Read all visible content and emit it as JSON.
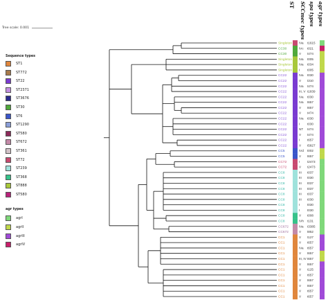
{
  "scale_label": "Tree scale: 0.001",
  "legends": {
    "sequence_types": {
      "title": "Sequence types",
      "items": [
        {
          "label": "ST1",
          "color": "#e0863c"
        },
        {
          "label": "ST772",
          "color": "#a87a4a"
        },
        {
          "label": "ST22",
          "color": "#7a3bd1"
        },
        {
          "label": "ST2371",
          "color": "#c28ee0"
        },
        {
          "label": "ST3676",
          "color": "#2a2a8c"
        },
        {
          "label": "ST30",
          "color": "#4fa83a"
        },
        {
          "label": "ST6",
          "color": "#3a55c9"
        },
        {
          "label": "ST1290",
          "color": "#8a9ed8"
        },
        {
          "label": "ST580",
          "color": "#8c2a5a"
        },
        {
          "label": "ST672",
          "color": "#c48aa8"
        },
        {
          "label": "ST361",
          "color": "#d2c3c8"
        },
        {
          "label": "ST72",
          "color": "#c84a70"
        },
        {
          "label": "ST239",
          "color": "#9fe2dc"
        },
        {
          "label": "ST368",
          "color": "#36c28a"
        },
        {
          "label": "ST888",
          "color": "#a8c83a"
        },
        {
          "label": "ST580",
          "color": "#b8227a"
        }
      ]
    },
    "agr_types": {
      "title": "agr types",
      "items": [
        {
          "label": "agrI",
          "color": "#7fd87a"
        },
        {
          "label": "agrII",
          "color": "#c0d84a"
        },
        {
          "label": "agrIII",
          "color": "#a04ad8"
        },
        {
          "label": "agrIV",
          "color": "#c81e6a"
        }
      ]
    }
  },
  "column_headers": {
    "st": "ST",
    "scc": "SCCmec types",
    "spa": "spa types",
    "agr": "agr types"
  },
  "leaves": [
    {
      "cc": "Singleton",
      "scc": "IVa",
      "spa": "t1615",
      "st_color": "#c84a70",
      "agr_color": "#7fd87a"
    },
    {
      "cc": "CC30",
      "scc": "IVc",
      "spa": "t021",
      "st_color": "#4fa83a",
      "agr_color": "#c81e6a"
    },
    {
      "cc": "CC30",
      "scc": "V",
      "spa": "t474",
      "st_color": "#4fa83a",
      "agr_color": "#c0d84a"
    },
    {
      "cc": "Singleton",
      "scc": "IVa",
      "spa": "t005",
      "st_color": "#a8c83a",
      "agr_color": "#c0d84a"
    },
    {
      "cc": "Singleton",
      "scc": "IVa",
      "spa": "t034",
      "st_color": "#a8c83a",
      "agr_color": "#c0d84a"
    },
    {
      "cc": "Singleton",
      "scc": "I",
      "spa": "t005",
      "st_color": "#a8c83a",
      "agr_color": "#c0d84a"
    },
    {
      "cc": "CC22",
      "scc": "IVa",
      "spa": "t030",
      "st_color": "#7a3bd1",
      "agr_color": "#a04ad8"
    },
    {
      "cc": "CC22",
      "scc": "V",
      "spa": "t310",
      "st_color": "#7a3bd1",
      "agr_color": "#a04ad8"
    },
    {
      "cc": "CC22",
      "scc": "IVa",
      "spa": "t474",
      "st_color": "#7a3bd1",
      "agr_color": "#a04ad8"
    },
    {
      "cc": "CC22",
      "scc": "III, V",
      "spa": "t1839",
      "st_color": "#7a3bd1",
      "agr_color": "#a04ad8"
    },
    {
      "cc": "CC22",
      "scc": "IVa",
      "spa": "t030",
      "st_color": "#7a3bd1",
      "agr_color": "#a04ad8"
    },
    {
      "cc": "CC22",
      "scc": "IVa",
      "spa": "t657",
      "st_color": "#7a3bd1",
      "agr_color": "#a04ad8"
    },
    {
      "cc": "CC22",
      "scc": "V",
      "spa": "t657",
      "st_color": "#7a3bd1",
      "agr_color": "#a04ad8"
    },
    {
      "cc": "CC22",
      "scc": "V",
      "spa": "t474",
      "st_color": "#7a3bd1",
      "agr_color": "#a04ad8"
    },
    {
      "cc": "CC22",
      "scc": "IVa",
      "spa": "t030",
      "st_color": "#7a3bd1",
      "agr_color": "#a04ad8"
    },
    {
      "cc": "CC22",
      "scc": "I",
      "spa": "t030",
      "st_color": "#7a3bd1",
      "agr_color": "#a04ad8"
    },
    {
      "cc": "CC22",
      "scc": "NT",
      "spa": "t474",
      "st_color": "#7a3bd1",
      "agr_color": "#a04ad8"
    },
    {
      "cc": "CC22",
      "scc": "V",
      "spa": "t474",
      "st_color": "#7a3bd1",
      "agr_color": "#a04ad8"
    },
    {
      "cc": "CC22",
      "scc": "I",
      "spa": "t657",
      "st_color": "#7a3bd1",
      "agr_color": "#a04ad8"
    },
    {
      "cc": "CC22",
      "scc": "V",
      "spa": "t5827",
      "st_color": "#7a3bd1",
      "agr_color": "#a04ad8"
    },
    {
      "cc": "CC5",
      "scc": "IVd",
      "spa": "t002",
      "st_color": "#3a55c9",
      "agr_color": "#c0d84a"
    },
    {
      "cc": "CC5",
      "scc": "V",
      "spa": "t657",
      "st_color": "#3a55c9",
      "agr_color": "#c0d84a"
    },
    {
      "cc": "CC72",
      "scc": "I",
      "spa": "t2473",
      "st_color": "#c84a70",
      "agr_color": "#7fd87a"
    },
    {
      "cc": "CC72",
      "scc": "V",
      "spa": "t2473",
      "st_color": "#c84a70",
      "agr_color": "#7fd87a"
    },
    {
      "cc": "CC8",
      "scc": "III",
      "spa": "t037",
      "st_color": "#9fe2dc",
      "agr_color": "#7fd87a"
    },
    {
      "cc": "CC8",
      "scc": "III",
      "spa": "t030",
      "st_color": "#9fe2dc",
      "agr_color": "#7fd87a"
    },
    {
      "cc": "CC8",
      "scc": "III",
      "spa": "t037",
      "st_color": "#9fe2dc",
      "agr_color": "#7fd87a"
    },
    {
      "cc": "CC8",
      "scc": "III",
      "spa": "t037",
      "st_color": "#9fe2dc",
      "agr_color": "#7fd87a"
    },
    {
      "cc": "CC8",
      "scc": "III",
      "spa": "t037",
      "st_color": "#9fe2dc",
      "agr_color": "#7fd87a"
    },
    {
      "cc": "CC8",
      "scc": "III",
      "spa": "t030",
      "st_color": "#9fe2dc",
      "agr_color": "#7fd87a"
    },
    {
      "cc": "CC8",
      "scc": "I",
      "spa": "t030",
      "st_color": "#9fe2dc",
      "agr_color": "#7fd87a"
    },
    {
      "cc": "CC8",
      "scc": "I",
      "spa": "t030",
      "st_color": "#9fe2dc",
      "agr_color": "#7fd87a"
    },
    {
      "cc": "CC8",
      "scc": "V",
      "spa": "t008",
      "st_color": "#36c28a",
      "agr_color": "#7fd87a"
    },
    {
      "cc": "CC8",
      "scc": "IVh",
      "spa": "t131",
      "st_color": "#36c28a",
      "agr_color": "#7fd87a"
    },
    {
      "cc": "CC672",
      "scc": "IVa",
      "spa": "t3385",
      "st_color": "#c48aa8",
      "agr_color": "#7fd87a"
    },
    {
      "cc": "CC672",
      "scc": "V",
      "spa": "t852",
      "st_color": "#c48aa8",
      "agr_color": "#7fd87a"
    },
    {
      "cc": "CC1",
      "scc": "V",
      "spa": "t127",
      "st_color": "#e0863c",
      "agr_color": "#a04ad8"
    },
    {
      "cc": "CC1",
      "scc": "V",
      "spa": "t657",
      "st_color": "#e0863c",
      "agr_color": "#a04ad8"
    },
    {
      "cc": "CC1",
      "scc": "IVa",
      "spa": "t657",
      "st_color": "#e0863c",
      "agr_color": "#a04ad8"
    },
    {
      "cc": "CC1",
      "scc": "V",
      "spa": "t657",
      "st_color": "#e0863c",
      "agr_color": "#c0d84a"
    },
    {
      "cc": "CC1",
      "scc": "III, IV",
      "spa": "t657",
      "st_color": "#e0863c",
      "agr_color": "#c0d84a"
    },
    {
      "cc": "CC1",
      "scc": "V",
      "spa": "t657",
      "st_color": "#e0863c",
      "agr_color": "#a04ad8"
    },
    {
      "cc": "CC1",
      "scc": "V",
      "spa": "t125",
      "st_color": "#e0863c",
      "agr_color": "#a04ad8"
    },
    {
      "cc": "CC1",
      "scc": "V",
      "spa": "t657",
      "st_color": "#e0863c",
      "agr_color": "#a04ad8"
    },
    {
      "cc": "CC1",
      "scc": "V",
      "spa": "t657",
      "st_color": "#e0863c",
      "agr_color": "#a04ad8"
    },
    {
      "cc": "CC1",
      "scc": "V",
      "spa": "t657",
      "st_color": "#e0863c",
      "agr_color": "#a04ad8"
    },
    {
      "cc": "CC1",
      "scc": "V",
      "spa": "t657",
      "st_color": "#e0863c",
      "agr_color": "#a04ad8"
    },
    {
      "cc": "CC1",
      "scc": "V",
      "spa": "t657",
      "st_color": "#e0863c",
      "agr_color": "#a04ad8"
    }
  ],
  "clade_colors": {
    "Singleton": "#a8c83a",
    "CC30": "#4fa83a",
    "CC22": "#8a5ad8",
    "CC5": "#3a55c9",
    "CC72": "#c84a70",
    "CC8": "#36b8a8",
    "CC672": "#9c6a9a",
    "CC1": "#e0863c"
  }
}
